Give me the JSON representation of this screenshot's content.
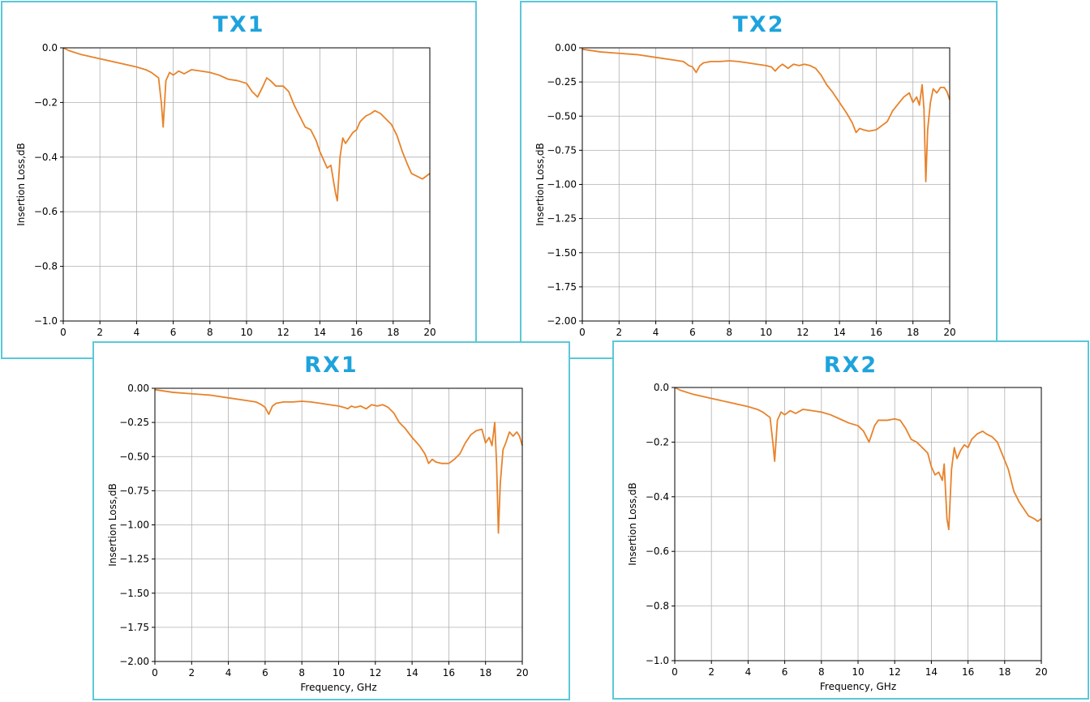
{
  "colors": {
    "line": "#e8822a",
    "title": "#1ea3dc",
    "border": "#5bc8d8"
  },
  "chart_data": [
    {
      "id": "tx1",
      "type": "line",
      "title": "TX1",
      "xlabel": "",
      "ylabel": "Insertion Loss,dB",
      "xlim": [
        0,
        20
      ],
      "ylim": [
        -1.0,
        0.0
      ],
      "xticks": [
        0,
        2,
        4,
        6,
        8,
        10,
        12,
        14,
        16,
        18,
        20
      ],
      "yticks": [
        -1.0,
        -0.8,
        -0.6,
        -0.4,
        -0.2,
        0.0
      ],
      "ytick_labels": [
        "−1.0",
        "−0.8",
        "−0.6",
        "−0.4",
        "−0.2",
        "0.0"
      ],
      "grid": true,
      "series": [
        {
          "name": "TX1",
          "x": [
            0,
            0.3,
            1,
            2,
            3,
            4,
            4.5,
            4.8,
            5.0,
            5.2,
            5.35,
            5.45,
            5.6,
            5.8,
            6.0,
            6.3,
            6.6,
            7,
            7.5,
            8,
            8.5,
            9,
            9.5,
            10,
            10.3,
            10.6,
            10.9,
            11.1,
            11.3,
            11.6,
            12,
            12.3,
            12.6,
            12.9,
            13.2,
            13.5,
            13.8,
            14.0,
            14.2,
            14.4,
            14.6,
            14.7,
            14.85,
            14.95,
            15.1,
            15.25,
            15.4,
            15.6,
            15.8,
            16.0,
            16.2,
            16.5,
            16.8,
            17.0,
            17.3,
            17.6,
            17.9,
            18.2,
            18.5,
            18.8,
            19.0,
            19.3,
            19.6,
            19.8,
            20.0
          ],
          "y": [
            0.0,
            -0.01,
            -0.025,
            -0.04,
            -0.055,
            -0.07,
            -0.08,
            -0.09,
            -0.1,
            -0.11,
            -0.2,
            -0.29,
            -0.12,
            -0.09,
            -0.1,
            -0.085,
            -0.095,
            -0.08,
            -0.085,
            -0.09,
            -0.1,
            -0.115,
            -0.12,
            -0.13,
            -0.16,
            -0.18,
            -0.14,
            -0.11,
            -0.12,
            -0.14,
            -0.14,
            -0.16,
            -0.21,
            -0.25,
            -0.29,
            -0.3,
            -0.34,
            -0.38,
            -0.41,
            -0.44,
            -0.43,
            -0.47,
            -0.53,
            -0.56,
            -0.4,
            -0.33,
            -0.35,
            -0.33,
            -0.31,
            -0.3,
            -0.27,
            -0.25,
            -0.24,
            -0.23,
            -0.24,
            -0.26,
            -0.28,
            -0.32,
            -0.38,
            -0.43,
            -0.46,
            -0.47,
            -0.48,
            -0.47,
            -0.46
          ]
        }
      ]
    },
    {
      "id": "tx2",
      "type": "line",
      "title": "TX2",
      "xlabel": "",
      "ylabel": "Insertion Loss,dB",
      "xlim": [
        0,
        20
      ],
      "ylim": [
        -2.0,
        0.0
      ],
      "xticks": [
        0,
        2,
        4,
        6,
        8,
        10,
        12,
        14,
        16,
        18,
        20
      ],
      "yticks": [
        -2.0,
        -1.75,
        -1.5,
        -1.25,
        -1.0,
        -0.75,
        -0.5,
        -0.25,
        0.0
      ],
      "ytick_labels": [
        "−2.00",
        "−1.75",
        "−1.50",
        "−1.25",
        "−1.00",
        "−0.75",
        "−0.50",
        "−0.25",
        "0.00"
      ],
      "grid": true,
      "series": [
        {
          "name": "TX2",
          "x": [
            0,
            1,
            2,
            3,
            4,
            5,
            5.5,
            5.8,
            6.0,
            6.2,
            6.4,
            6.6,
            7,
            7.5,
            8,
            8.5,
            9,
            9.5,
            10,
            10.3,
            10.5,
            10.7,
            10.9,
            11.2,
            11.5,
            11.8,
            12.1,
            12.4,
            12.7,
            13.0,
            13.3,
            13.6,
            14.0,
            14.4,
            14.7,
            14.9,
            15.1,
            15.3,
            15.6,
            16.0,
            16.3,
            16.6,
            16.9,
            17.2,
            17.5,
            17.8,
            18.0,
            18.2,
            18.35,
            18.5,
            18.6,
            18.7,
            18.8,
            18.95,
            19.1,
            19.3,
            19.5,
            19.7,
            19.85,
            20.0
          ],
          "y": [
            -0.01,
            -0.03,
            -0.04,
            -0.05,
            -0.07,
            -0.09,
            -0.1,
            -0.13,
            -0.14,
            -0.18,
            -0.13,
            -0.11,
            -0.1,
            -0.1,
            -0.095,
            -0.1,
            -0.11,
            -0.12,
            -0.13,
            -0.14,
            -0.17,
            -0.14,
            -0.12,
            -0.15,
            -0.12,
            -0.13,
            -0.12,
            -0.13,
            -0.15,
            -0.2,
            -0.27,
            -0.32,
            -0.4,
            -0.48,
            -0.55,
            -0.62,
            -0.59,
            -0.6,
            -0.61,
            -0.6,
            -0.57,
            -0.54,
            -0.46,
            -0.41,
            -0.36,
            -0.33,
            -0.4,
            -0.36,
            -0.42,
            -0.27,
            -0.45,
            -0.98,
            -0.6,
            -0.4,
            -0.3,
            -0.33,
            -0.29,
            -0.29,
            -0.32,
            -0.38
          ]
        }
      ]
    },
    {
      "id": "rx1",
      "type": "line",
      "title": "RX1",
      "xlabel": "Frequency, GHz",
      "ylabel": "Insertion Loss,dB",
      "xlim": [
        0,
        20
      ],
      "ylim": [
        -2.0,
        0.0
      ],
      "xticks": [
        0,
        2,
        4,
        6,
        8,
        10,
        12,
        14,
        16,
        18,
        20
      ],
      "yticks": [
        -2.0,
        -1.75,
        -1.5,
        -1.25,
        -1.0,
        -0.75,
        -0.5,
        -0.25,
        0.0
      ],
      "ytick_labels": [
        "−2.00",
        "−1.75",
        "−1.50",
        "−1.25",
        "−1.00",
        "−0.75",
        "−0.50",
        "−0.25",
        "0.00"
      ],
      "grid": true,
      "series": [
        {
          "name": "RX1",
          "x": [
            0,
            1,
            2,
            3,
            4,
            5,
            5.5,
            5.8,
            6.0,
            6.2,
            6.4,
            6.6,
            7,
            7.5,
            8,
            8.5,
            9,
            9.5,
            10,
            10.3,
            10.5,
            10.7,
            10.9,
            11.2,
            11.5,
            11.8,
            12.1,
            12.4,
            12.7,
            13.0,
            13.3,
            13.6,
            14.0,
            14.4,
            14.7,
            14.9,
            15.1,
            15.3,
            15.6,
            16.0,
            16.3,
            16.6,
            16.9,
            17.2,
            17.5,
            17.8,
            18.0,
            18.2,
            18.35,
            18.5,
            18.6,
            18.7,
            18.8,
            18.95,
            19.1,
            19.3,
            19.5,
            19.7,
            19.85,
            20.0
          ],
          "y": [
            -0.01,
            -0.03,
            -0.04,
            -0.05,
            -0.07,
            -0.09,
            -0.1,
            -0.12,
            -0.14,
            -0.19,
            -0.13,
            -0.11,
            -0.1,
            -0.1,
            -0.095,
            -0.1,
            -0.11,
            -0.12,
            -0.13,
            -0.14,
            -0.15,
            -0.13,
            -0.14,
            -0.13,
            -0.15,
            -0.12,
            -0.13,
            -0.12,
            -0.14,
            -0.18,
            -0.25,
            -0.29,
            -0.36,
            -0.42,
            -0.48,
            -0.55,
            -0.52,
            -0.54,
            -0.55,
            -0.55,
            -0.52,
            -0.48,
            -0.4,
            -0.34,
            -0.31,
            -0.3,
            -0.4,
            -0.36,
            -0.42,
            -0.25,
            -0.55,
            -1.06,
            -0.7,
            -0.45,
            -0.4,
            -0.32,
            -0.35,
            -0.32,
            -0.35,
            -0.42
          ]
        }
      ]
    },
    {
      "id": "rx2",
      "type": "line",
      "title": "RX2",
      "xlabel": "Frequency, GHz",
      "ylabel": "Insertion Loss,dB",
      "xlim": [
        0,
        20
      ],
      "ylim": [
        -1.0,
        0.0
      ],
      "xticks": [
        0,
        2,
        4,
        6,
        8,
        10,
        12,
        14,
        16,
        18,
        20
      ],
      "yticks": [
        -1.0,
        -0.8,
        -0.6,
        -0.4,
        -0.2,
        0.0
      ],
      "ytick_labels": [
        "−1.0",
        "−0.8",
        "−0.6",
        "−0.4",
        "−0.2",
        "0.0"
      ],
      "grid": true,
      "series": [
        {
          "name": "RX2",
          "x": [
            0,
            0.3,
            1,
            2,
            3,
            4,
            4.5,
            4.8,
            5.0,
            5.2,
            5.35,
            5.45,
            5.6,
            5.8,
            6.0,
            6.3,
            6.6,
            7,
            7.5,
            8,
            8.5,
            9,
            9.5,
            10,
            10.3,
            10.6,
            10.9,
            11.1,
            11.3,
            11.6,
            12,
            12.3,
            12.6,
            12.9,
            13.2,
            13.5,
            13.8,
            14.0,
            14.2,
            14.4,
            14.6,
            14.7,
            14.85,
            14.95,
            15.1,
            15.25,
            15.4,
            15.6,
            15.8,
            16.0,
            16.2,
            16.5,
            16.8,
            17.0,
            17.3,
            17.6,
            17.9,
            18.2,
            18.5,
            18.8,
            19.0,
            19.3,
            19.6,
            19.8,
            20.0
          ],
          "y": [
            0.0,
            -0.01,
            -0.025,
            -0.04,
            -0.055,
            -0.07,
            -0.08,
            -0.09,
            -0.1,
            -0.11,
            -0.2,
            -0.27,
            -0.12,
            -0.09,
            -0.1,
            -0.085,
            -0.095,
            -0.08,
            -0.085,
            -0.09,
            -0.1,
            -0.115,
            -0.13,
            -0.14,
            -0.16,
            -0.2,
            -0.14,
            -0.12,
            -0.12,
            -0.12,
            -0.115,
            -0.12,
            -0.15,
            -0.19,
            -0.2,
            -0.22,
            -0.24,
            -0.29,
            -0.32,
            -0.31,
            -0.34,
            -0.28,
            -0.48,
            -0.52,
            -0.3,
            -0.22,
            -0.26,
            -0.23,
            -0.21,
            -0.22,
            -0.19,
            -0.17,
            -0.16,
            -0.17,
            -0.18,
            -0.2,
            -0.25,
            -0.3,
            -0.38,
            -0.42,
            -0.44,
            -0.47,
            -0.48,
            -0.49,
            -0.48
          ]
        }
      ]
    }
  ]
}
